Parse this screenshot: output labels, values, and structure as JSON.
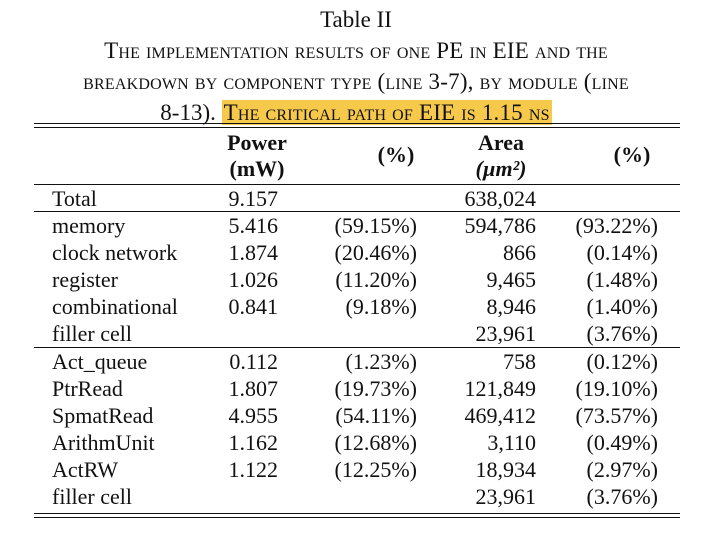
{
  "caption": {
    "title": "Table II",
    "line1": "The implementation results of one PE in EIE and the",
    "line2": "breakdown by component type (line 3-7), by module (line",
    "line3_plain": "8-13).",
    "line3_highlight": "The critical path of EIE is 1.15 ns",
    "highlight_color": "#f7c94a"
  },
  "table": {
    "headers": {
      "power_label": "Power",
      "power_unit": "(mW)",
      "power_pct": "(%)",
      "area_label": "Area",
      "area_unit": "(µm²)",
      "area_pct": "(%)"
    },
    "total": {
      "label": "Total",
      "power": "9.157",
      "area": "638,024"
    },
    "components": [
      {
        "label": "memory",
        "power": "5.416",
        "power_pct": "(59.15%)",
        "area": "594,786",
        "area_pct": "(93.22%)"
      },
      {
        "label": "clock network",
        "power": "1.874",
        "power_pct": "(20.46%)",
        "area": "866",
        "area_pct": "(0.14%)"
      },
      {
        "label": "register",
        "power": "1.026",
        "power_pct": "(11.20%)",
        "area": "9,465",
        "area_pct": "(1.48%)"
      },
      {
        "label": "combinational",
        "power": "0.841",
        "power_pct": "(9.18%)",
        "area": "8,946",
        "area_pct": "(1.40%)"
      },
      {
        "label": "filler cell",
        "power": "",
        "power_pct": "",
        "area": "23,961",
        "area_pct": "(3.76%)"
      }
    ],
    "modules": [
      {
        "label": "Act_queue",
        "power": "0.112",
        "power_pct": "(1.23%)",
        "area": "758",
        "area_pct": "(0.12%)"
      },
      {
        "label": "PtrRead",
        "power": "1.807",
        "power_pct": "(19.73%)",
        "area": "121,849",
        "area_pct": "(19.10%)"
      },
      {
        "label": "SpmatRead",
        "power": "4.955",
        "power_pct": "(54.11%)",
        "area": "469,412",
        "area_pct": "(73.57%)"
      },
      {
        "label": "ArithmUnit",
        "power": "1.162",
        "power_pct": "(12.68%)",
        "area": "3,110",
        "area_pct": "(0.49%)"
      },
      {
        "label": "ActRW",
        "power": "1.122",
        "power_pct": "(12.25%)",
        "area": "18,934",
        "area_pct": "(2.97%)"
      },
      {
        "label": "filler cell",
        "power": "",
        "power_pct": "",
        "area": "23,961",
        "area_pct": "(3.76%)"
      }
    ]
  }
}
